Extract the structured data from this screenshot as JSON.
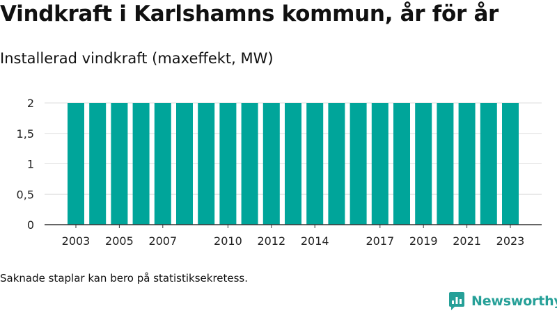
{
  "title": "Vindkraft i Karlshamns kommun, år för år",
  "subtitle": "Installerad vindkraft (maxeffekt, MW)",
  "footnote": "Saknade staplar kan bero på statistiksekretess.",
  "brand": {
    "name": "Newsworthy",
    "icon": "newsworthy-logo-icon",
    "color": "#26a098"
  },
  "chart_data": {
    "type": "bar",
    "title": "",
    "xlabel": "",
    "ylabel": "",
    "categories": [
      "2003",
      "2004",
      "2005",
      "2006",
      "2007",
      "2008",
      "2009",
      "2010",
      "2011",
      "2012",
      "2013",
      "2014",
      "2015",
      "2016",
      "2017",
      "2018",
      "2019",
      "2020",
      "2021",
      "2022",
      "2023"
    ],
    "values": [
      2,
      2,
      2,
      2,
      2,
      2,
      2,
      2,
      2,
      2,
      2,
      2,
      2,
      2,
      2,
      2,
      2,
      2,
      2,
      2,
      2
    ],
    "xtick_labels": [
      "2003",
      "2005",
      "2007",
      "2010",
      "2012",
      "2014",
      "2017",
      "2019",
      "2021",
      "2023"
    ],
    "yticks": [
      0,
      0.5,
      1,
      1.5,
      2
    ],
    "ytick_labels": [
      "0",
      "0,5",
      "1",
      "1,5",
      "2"
    ],
    "ylim": [
      0,
      2
    ],
    "grid": true,
    "bar_color": "#00a59a"
  }
}
